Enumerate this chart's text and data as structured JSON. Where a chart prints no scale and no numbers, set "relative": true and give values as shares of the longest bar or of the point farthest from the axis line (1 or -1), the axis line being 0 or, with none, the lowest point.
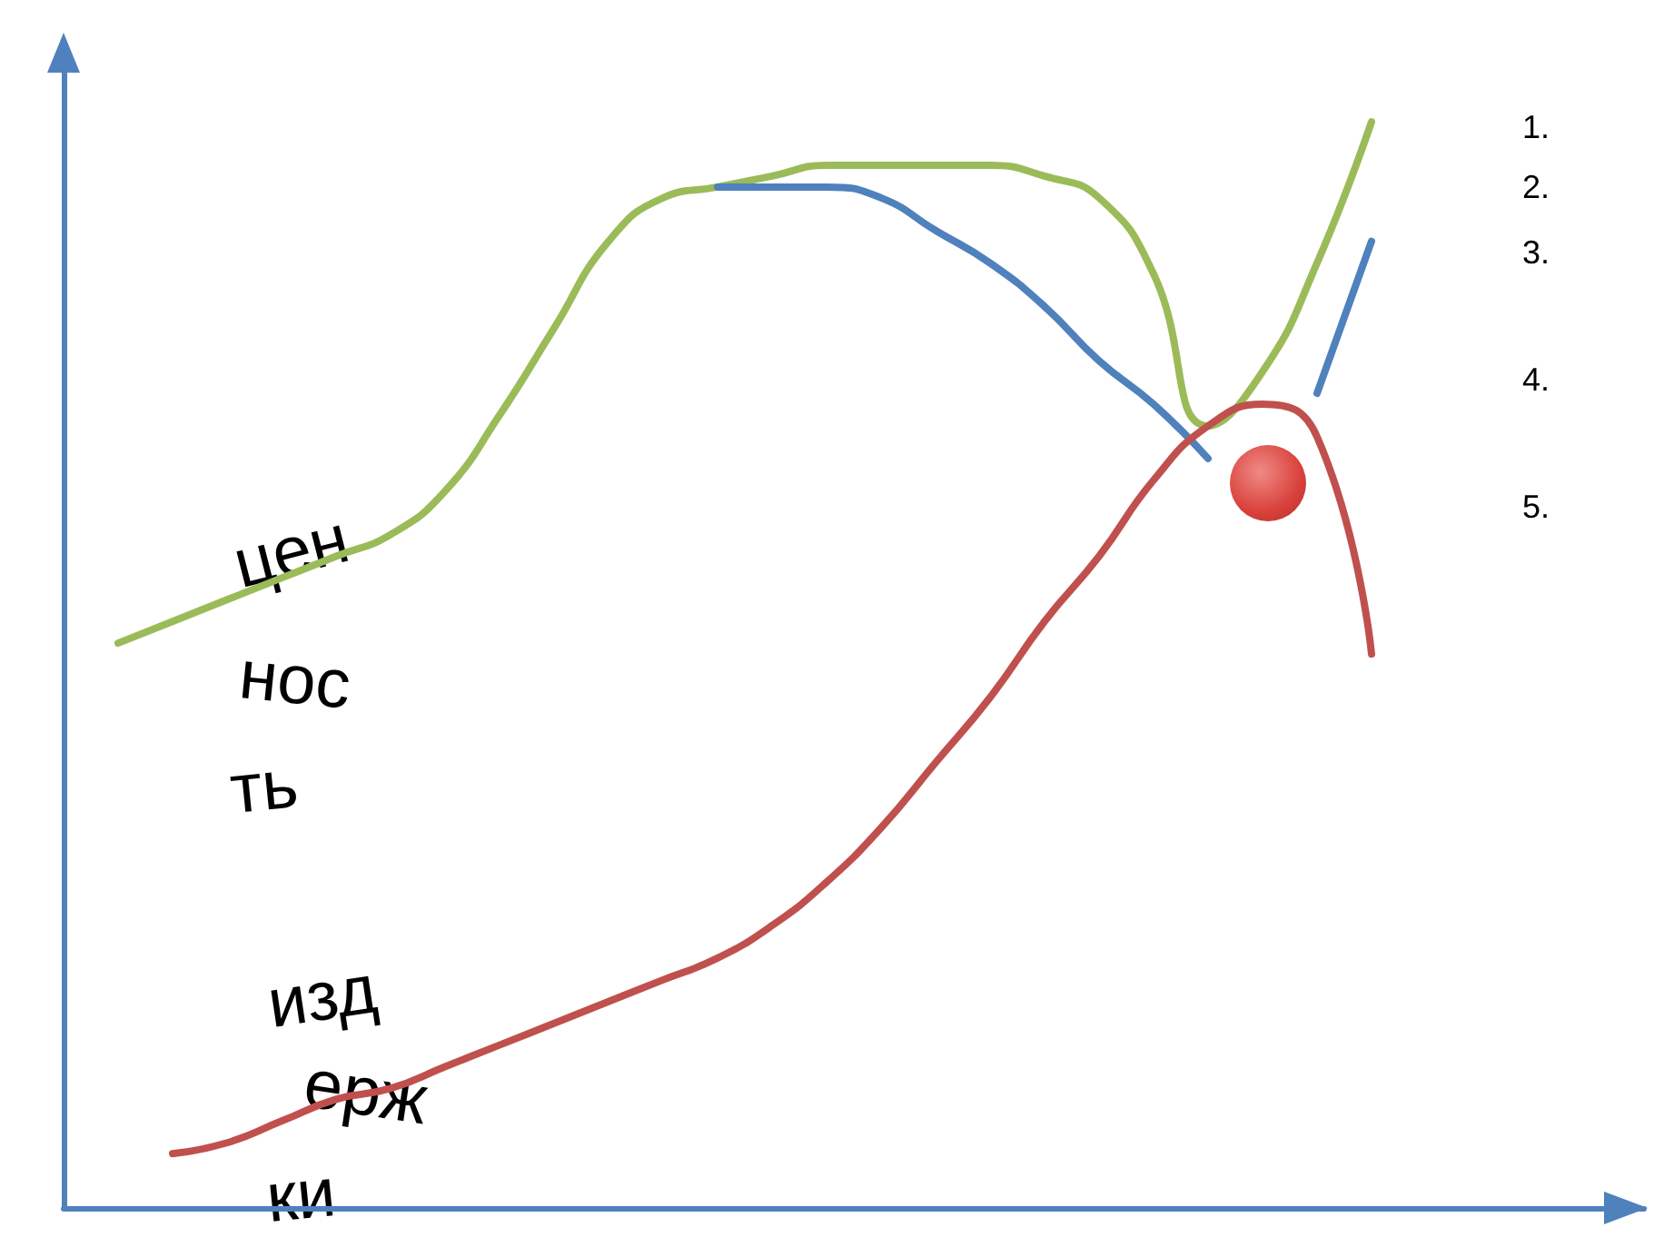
{
  "chart_data": {
    "type": "line",
    "relative": true,
    "grid": false,
    "marker": "none",
    "line_style": "solid",
    "categories": [
      null,
      null,
      null,
      null,
      null,
      null,
      null,
      null,
      null,
      null,
      null,
      null,
      null,
      null,
      null,
      null,
      null,
      null,
      null,
      null,
      null,
      null,
      null,
      null,
      null,
      null,
      null,
      null,
      null,
      null
    ],
    "series": [
      {
        "color": "#9bbb59",
        "values": [
          null,
          0.52,
          0.54,
          0.56,
          0.58,
          0.6,
          0.62,
          0.66,
          0.73,
          0.81,
          0.89,
          0.93,
          0.94,
          0.95,
          0.96,
          0.96,
          0.96,
          0.96,
          0.95,
          0.93,
          0.86,
          0.72,
          0.77,
          0.87,
          1,
          null,
          null,
          null,
          null,
          null
        ]
      },
      {
        "color": "#4f81bd",
        "values": [
          null,
          null,
          null,
          null,
          null,
          null,
          null,
          null,
          null,
          null,
          null,
          null,
          0.94,
          0.94,
          0.94,
          0.93,
          0.9,
          0.87,
          0.83,
          0.78,
          0.74,
          0.69,
          null,
          0.75,
          0.89,
          null,
          null,
          null,
          null,
          null
        ]
      },
      {
        "color": "#c0504d",
        "values": [
          null,
          null,
          0.05,
          0.06,
          0.08,
          0.1,
          0.11,
          0.13,
          0.15,
          0.17,
          0.19,
          0.21,
          0.23,
          0.26,
          0.3,
          0.35,
          0.41,
          0.47,
          0.54,
          0.6,
          0.67,
          0.72,
          0.74,
          0.71,
          0.51,
          null,
          null,
          null,
          null,
          null
        ]
      }
    ],
    "annotations": [
      "цен",
      "нос",
      "ть",
      "изд",
      "ерж",
      "ки",
      "1.",
      "2.",
      "3.",
      "4.",
      "5."
    ]
  }
}
